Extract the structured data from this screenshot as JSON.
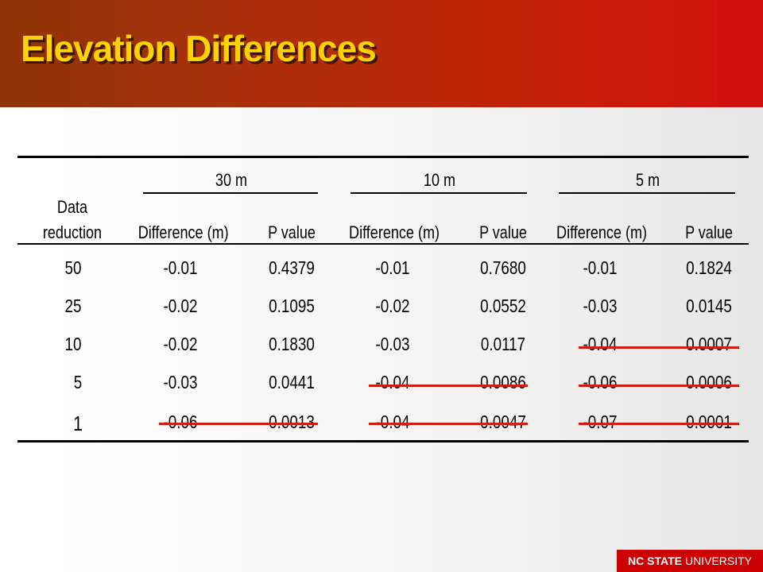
{
  "title": "Elevation Differences",
  "table": {
    "groups": [
      "30 m",
      "10 m",
      "5 m"
    ],
    "headers": {
      "data_reduction_line1": "Data",
      "data_reduction_line2": "reduction",
      "difference": "Difference (m)",
      "p_value": "P value"
    },
    "rows": [
      {
        "reduction": "50",
        "d30": "-0.01",
        "p30": "0.4379",
        "d10": "-0.01",
        "p10": "0.7680",
        "d5": "-0.01",
        "p5": "0.1824"
      },
      {
        "reduction": "25",
        "d30": "-0.02",
        "p30": "0.1095",
        "d10": "-0.02",
        "p10": "0.0552",
        "d5": "-0.03",
        "p5": "0.0145"
      },
      {
        "reduction": "10",
        "d30": "-0.02",
        "p30": "0.1830",
        "d10": "-0.03",
        "p10": "0.0117",
        "d5": "-0.04",
        "p5": "0.0007"
      },
      {
        "reduction": "5",
        "d30": "-0.03",
        "p30": "0.0441",
        "d10": "-0.04",
        "p10": "0.0086",
        "d5": "-0.06",
        "p5": "0.0006"
      },
      {
        "reduction": "1",
        "d30": "-0.06",
        "p30": "0.0013",
        "d10": "-0.04",
        "p10": "0.0047",
        "d5": "-0.07",
        "p5": "0.0001"
      }
    ],
    "strike_color": "#d01c10"
  },
  "footer": {
    "brand_bold": "NC STATE",
    "brand_rest": "UNIVERSITY"
  },
  "colors": {
    "header_start": "#8e3405",
    "header_end": "#d41010",
    "title": "#ffd200",
    "footer_bg": "#cc0000"
  }
}
